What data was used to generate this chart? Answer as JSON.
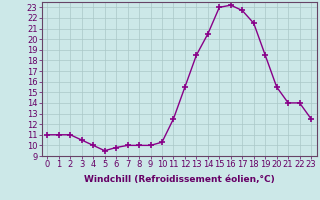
{
  "x": [
    0,
    1,
    2,
    3,
    4,
    5,
    6,
    7,
    8,
    9,
    10,
    11,
    12,
    13,
    14,
    15,
    16,
    17,
    18,
    19,
    20,
    21,
    22,
    23
  ],
  "y": [
    11,
    11,
    11,
    10.5,
    10,
    9.5,
    9.8,
    10,
    10,
    10,
    10.3,
    12.5,
    15.5,
    18.5,
    20.5,
    23,
    23.2,
    22.7,
    21.5,
    18.5,
    15.5,
    14,
    14,
    12.5
  ],
  "line_color": "#880088",
  "marker": "+",
  "marker_size": 4,
  "marker_lw": 1.2,
  "line_width": 1.0,
  "background_color": "#cce8e8",
  "grid_color": "#aac8c8",
  "xlabel": "Windchill (Refroidissement éolien,°C)",
  "xlabel_fontsize": 6.5,
  "tick_fontsize": 6.0,
  "ylim": [
    9,
    23.5
  ],
  "xlim": [
    -0.5,
    23.5
  ],
  "yticks": [
    9,
    10,
    11,
    12,
    13,
    14,
    15,
    16,
    17,
    18,
    19,
    20,
    21,
    22,
    23
  ],
  "xticks": [
    0,
    1,
    2,
    3,
    4,
    5,
    6,
    7,
    8,
    9,
    10,
    11,
    12,
    13,
    14,
    15,
    16,
    17,
    18,
    19,
    20,
    21,
    22,
    23
  ],
  "text_color": "#660066",
  "spine_color": "#664466"
}
